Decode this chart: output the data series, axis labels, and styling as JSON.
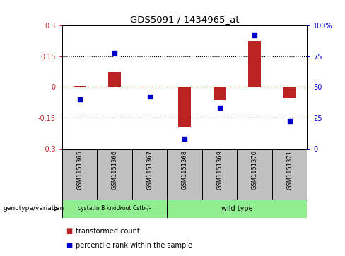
{
  "title": "GDS5091 / 1434965_at",
  "samples": [
    "GSM1151365",
    "GSM1151366",
    "GSM1151367",
    "GSM1151368",
    "GSM1151369",
    "GSM1151370",
    "GSM1151371"
  ],
  "red_bars": [
    0.005,
    0.075,
    0.003,
    -0.195,
    -0.065,
    0.225,
    -0.053
  ],
  "blue_dots": [
    40,
    78,
    42,
    8,
    33,
    92,
    22
  ],
  "ylim_left": [
    -0.3,
    0.3
  ],
  "ylim_right": [
    0,
    100
  ],
  "yticks_left": [
    -0.3,
    -0.15,
    0,
    0.15,
    0.3
  ],
  "ytick_labels_left": [
    "-0.3",
    "-0.15",
    "0",
    "0.15",
    "0.3"
  ],
  "yticks_right": [
    0,
    25,
    50,
    75,
    100
  ],
  "ytick_labels_right": [
    "0",
    "25",
    "50",
    "75",
    "100%"
  ],
  "hlines": [
    0.15,
    -0.15
  ],
  "red_color": "#BB2222",
  "blue_color": "#0000CC",
  "group_box_color": "#C0C0C0",
  "group1_label": "cystatin B knockout Cstb-/-",
  "group1_color": "#90EE90",
  "group1_span": [
    0,
    2
  ],
  "group2_label": "wild type",
  "group2_color": "#90EE90",
  "group2_span": [
    3,
    6
  ],
  "legend_red_label": "transformed count",
  "legend_blue_label": "percentile rank within the sample",
  "genotype_label": "genotype/variation",
  "bar_width": 0.35,
  "blue_square_size": 18
}
